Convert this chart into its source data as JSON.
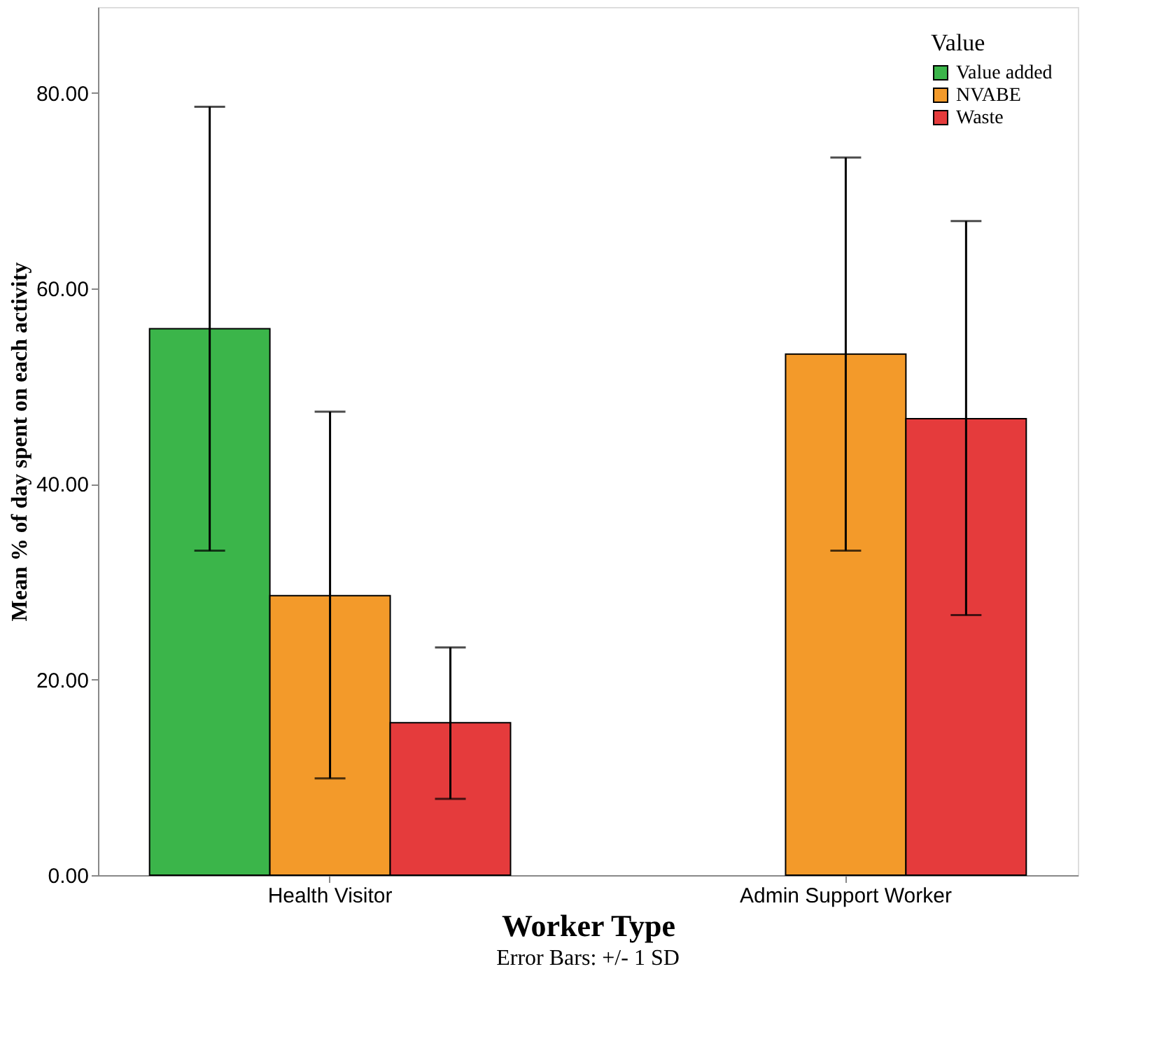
{
  "chart_data": {
    "type": "bar",
    "xlabel": "Worker Type",
    "ylabel": "Mean % of day spent on each activity",
    "legend_title": "Value",
    "legend": "top right",
    "grid": false,
    "categories": [
      "Health Visitor",
      "Admin Support Worker"
    ],
    "series": [
      {
        "name": "Value added",
        "color": "#3bb54a",
        "values": [
          55.9,
          null
        ],
        "errors": [
          22.7,
          null
        ]
      },
      {
        "name": "NVABE",
        "color": "#f39a2a",
        "values": [
          28.6,
          53.3
        ],
        "errors": [
          [
            9.9,
            47.4
          ],
          [
            33.2,
            73.4
          ]
        ]
      },
      {
        "name": "Waste",
        "color": "#e53b3c",
        "values": [
          15.6,
          46.7
        ],
        "errors": [
          [
            7.8,
            23.3
          ],
          [
            26.6,
            66.9
          ]
        ]
      }
    ],
    "ylim": [
      0,
      88.8
    ],
    "yticks": [
      {
        "value": 0,
        "label": "0.00"
      },
      {
        "value": 20,
        "label": "20.00"
      },
      {
        "value": 40,
        "label": "40.00"
      },
      {
        "value": 60,
        "label": "60.00"
      },
      {
        "value": 80,
        "label": "80.00"
      }
    ],
    "annotations": [
      "Error Bars: +/- 1 SD"
    ]
  }
}
